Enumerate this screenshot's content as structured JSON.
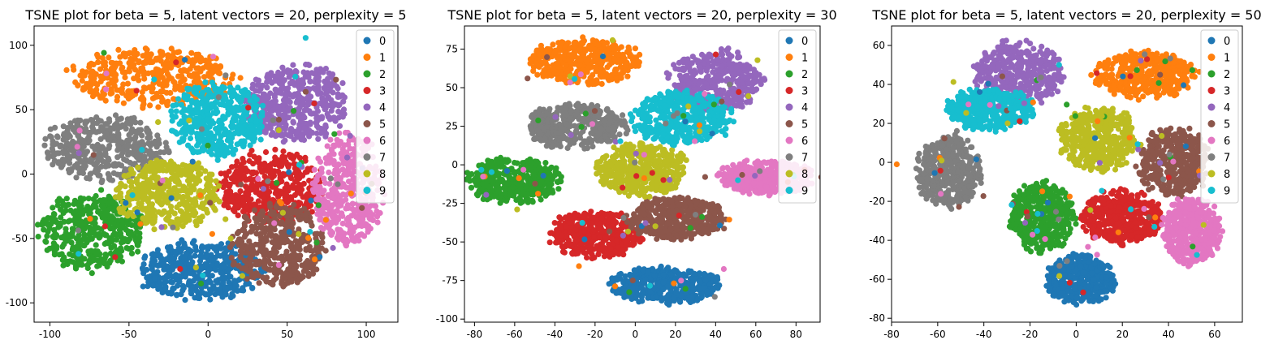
{
  "cluster_colors": [
    "#1f77b4",
    "#ff7f0e",
    "#2ca02c",
    "#d62728",
    "#9467bd",
    "#8c564b",
    "#e377c2",
    "#7f7f7f",
    "#bcbd22",
    "#17becf"
  ],
  "chart_data": [
    {
      "type": "scatter",
      "title": "TSNE plot for beta = 5, latent vectors = 20, perplexity = 5",
      "xlabel": "",
      "ylabel": "",
      "xlim": [
        -110,
        120
      ],
      "ylim": [
        -115,
        115
      ],
      "xticks": [
        -100,
        -50,
        0,
        50,
        100
      ],
      "yticks": [
        -100,
        -50,
        0,
        50,
        100
      ],
      "grid": false,
      "legend": {
        "position": "top-right",
        "entries": [
          "0",
          "1",
          "2",
          "3",
          "4",
          "5",
          "6",
          "7",
          "8",
          "9"
        ]
      },
      "series": [
        {
          "name": "0",
          "cx": -5,
          "cy": -75,
          "rx": 38,
          "ry": 23,
          "n": 420
        },
        {
          "name": "1",
          "cx": -35,
          "cy": 75,
          "rx": 52,
          "ry": 22,
          "n": 420
        },
        {
          "name": "2",
          "cx": -75,
          "cy": -45,
          "rx": 33,
          "ry": 30,
          "n": 420
        },
        {
          "name": "3",
          "cx": 40,
          "cy": -10,
          "rx": 33,
          "ry": 28,
          "n": 420
        },
        {
          "name": "4",
          "cx": 55,
          "cy": 55,
          "rx": 32,
          "ry": 30,
          "n": 420
        },
        {
          "name": "5",
          "cx": 45,
          "cy": -55,
          "rx": 30,
          "ry": 32,
          "n": 420
        },
        {
          "name": "6",
          "cx": 88,
          "cy": -12,
          "rx": 22,
          "ry": 43,
          "n": 420
        },
        {
          "name": "7",
          "cx": -65,
          "cy": 20,
          "rx": 38,
          "ry": 25,
          "n": 420
        },
        {
          "name": "8",
          "cx": -25,
          "cy": -15,
          "rx": 33,
          "ry": 27,
          "n": 420
        },
        {
          "name": "9",
          "cx": 5,
          "cy": 42,
          "rx": 30,
          "ry": 30,
          "n": 420
        }
      ]
    },
    {
      "type": "scatter",
      "title": "TSNE plot for beta = 5, latent vectors = 20, perplexity = 30",
      "xlabel": "",
      "ylabel": "",
      "xlim": [
        -85,
        92
      ],
      "ylim": [
        -102,
        90
      ],
      "xticks": [
        -80,
        -60,
        -40,
        -20,
        0,
        20,
        40,
        60,
        80
      ],
      "yticks": [
        -100,
        -75,
        -50,
        -25,
        0,
        25,
        50,
        75
      ],
      "grid": false,
      "legend": {
        "position": "top-right",
        "entries": [
          "0",
          "1",
          "2",
          "3",
          "4",
          "5",
          "6",
          "7",
          "8",
          "9"
        ]
      },
      "series": [
        {
          "name": "0",
          "cx": 15,
          "cy": -78,
          "rx": 27,
          "ry": 12,
          "n": 420
        },
        {
          "name": "1",
          "cx": -25,
          "cy": 67,
          "rx": 27,
          "ry": 15,
          "n": 420
        },
        {
          "name": "2",
          "cx": -60,
          "cy": -10,
          "rx": 23,
          "ry": 15,
          "n": 420
        },
        {
          "name": "3",
          "cx": -20,
          "cy": -45,
          "rx": 23,
          "ry": 15,
          "n": 420
        },
        {
          "name": "4",
          "cx": 40,
          "cy": 55,
          "rx": 23,
          "ry": 20,
          "n": 420
        },
        {
          "name": "5",
          "cx": 20,
          "cy": -35,
          "rx": 25,
          "ry": 14,
          "n": 420
        },
        {
          "name": "6",
          "cx": 65,
          "cy": -8,
          "rx": 23,
          "ry": 11,
          "n": 420
        },
        {
          "name": "7",
          "cx": -30,
          "cy": 25,
          "rx": 25,
          "ry": 14,
          "n": 420
        },
        {
          "name": "8",
          "cx": 3,
          "cy": -3,
          "rx": 22,
          "ry": 17,
          "n": 420
        },
        {
          "name": "9",
          "cx": 23,
          "cy": 30,
          "rx": 25,
          "ry": 17,
          "n": 420
        }
      ]
    },
    {
      "type": "scatter",
      "title": "TSNE plot for beta = 5, latent vectors = 20, perplexity = 50",
      "xlabel": "",
      "ylabel": "",
      "xlim": [
        -80,
        72
      ],
      "ylim": [
        -82,
        70
      ],
      "xticks": [
        -80,
        -60,
        -40,
        -20,
        0,
        20,
        40,
        60
      ],
      "yticks": [
        -80,
        -60,
        -40,
        -20,
        0,
        20,
        40,
        60
      ],
      "grid": false,
      "legend": {
        "position": "top-right",
        "entries": [
          "0",
          "1",
          "2",
          "3",
          "4",
          "5",
          "6",
          "7",
          "8",
          "9"
        ]
      },
      "series": [
        {
          "name": "0",
          "cx": 2,
          "cy": -60,
          "rx": 15,
          "ry": 13,
          "n": 420
        },
        {
          "name": "1",
          "cx": 30,
          "cy": 45,
          "rx": 22,
          "ry": 12,
          "n": 420
        },
        {
          "name": "2",
          "cx": -15,
          "cy": -28,
          "rx": 14,
          "ry": 18,
          "n": 420
        },
        {
          "name": "3",
          "cx": 20,
          "cy": -28,
          "rx": 17,
          "ry": 14,
          "n": 420
        },
        {
          "name": "4",
          "cx": -25,
          "cy": 45,
          "rx": 19,
          "ry": 17,
          "n": 420
        },
        {
          "name": "5",
          "cx": 42,
          "cy": 0,
          "rx": 15,
          "ry": 18,
          "n": 420
        },
        {
          "name": "6",
          "cx": 50,
          "cy": -35,
          "rx": 13,
          "ry": 17,
          "n": 420
        },
        {
          "name": "7",
          "cx": -55,
          "cy": -5,
          "rx": 14,
          "ry": 18,
          "n": 420
        },
        {
          "name": "8",
          "cx": 10,
          "cy": 12,
          "rx": 17,
          "ry": 17,
          "n": 420
        },
        {
          "name": "9",
          "cx": -37,
          "cy": 27,
          "rx": 19,
          "ry": 11,
          "n": 420
        }
      ]
    }
  ]
}
